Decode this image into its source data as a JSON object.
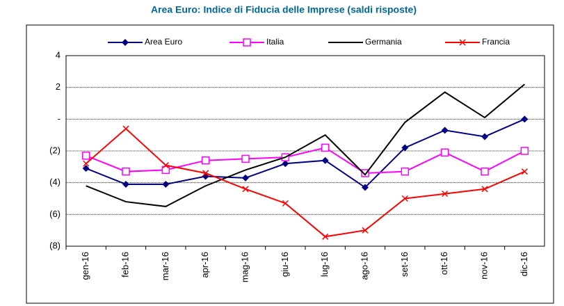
{
  "chart_data": {
    "type": "line",
    "title": "Area Euro: Indice di Fiducia delle Imprese (saldi risposte)",
    "categories": [
      "gen-16",
      "feb-16",
      "mar-16",
      "apr-16",
      "mag-16",
      "giu-16",
      "lug-16",
      "ago-16",
      "set-16",
      "ott-16",
      "nov-16",
      "dic-16"
    ],
    "series": [
      {
        "name": "Area Euro",
        "color": "#000080",
        "marker": "diamond",
        "values": [
          -3.1,
          -4.1,
          -4.1,
          -3.6,
          -3.7,
          -2.8,
          -2.6,
          -4.3,
          -1.8,
          -0.7,
          -1.1,
          0
        ]
      },
      {
        "name": "Italia",
        "color": "#ff00ff",
        "marker": "square",
        "values": [
          -2.3,
          -3.3,
          -3.2,
          -2.6,
          -2.5,
          -2.4,
          -1.8,
          -3.4,
          -3.3,
          -2.1,
          -3.3,
          -2.0
        ]
      },
      {
        "name": "Germania",
        "color": "#000000",
        "marker": "none",
        "values": [
          -4.2,
          -5.2,
          -5.5,
          -4.2,
          -3.2,
          -2.4,
          -1.0,
          -3.5,
          -0.2,
          1.7,
          0.1,
          2.2
        ]
      },
      {
        "name": "Francia",
        "color": "#ff0000",
        "marker": "x",
        "values": [
          -2.8,
          -0.6,
          -2.9,
          -3.4,
          -4.4,
          -5.3,
          -7.4,
          -7.0,
          -5.0,
          -4.7,
          -4.4,
          -3.3
        ]
      }
    ],
    "ylim": [
      -8,
      4
    ],
    "yticks": [
      {
        "value": -8,
        "label": "(8)"
      },
      {
        "value": -6,
        "label": "(6)"
      },
      {
        "value": -4,
        "label": "(4)"
      },
      {
        "value": -2,
        "label": "(2)"
      },
      {
        "value": 0,
        "label": "-"
      },
      2,
      4
    ],
    "grid": true,
    "legend": "top"
  }
}
